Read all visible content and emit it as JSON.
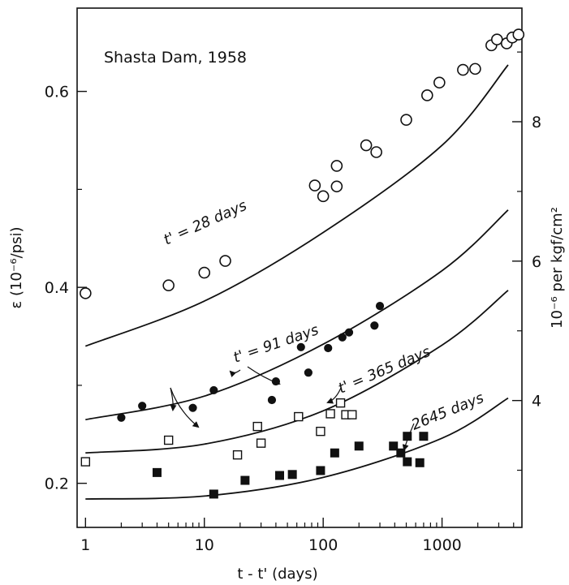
{
  "chart_data": {
    "type": "scatter",
    "title": "Shasta Dam, 1958",
    "xlabel": "t - t' (days)",
    "ylabel": "ε (10⁻⁶/psi)",
    "ylabel_right": "10⁻⁶ per kgf/cm²",
    "xscale": "log",
    "xlim": [
      0.85,
      4700
    ],
    "ylim": [
      0.155,
      0.685
    ],
    "y2lim": [
      2.18,
      9.63
    ],
    "xticks": [
      1,
      10,
      100,
      1000
    ],
    "xtick_labels": [
      "1",
      "10",
      "100",
      "1000"
    ],
    "yticks": [
      0.2,
      0.4,
      0.6
    ],
    "ytick_labels": [
      "0.2",
      "0.4",
      "0.6"
    ],
    "y2ticks": [
      4,
      6,
      8
    ],
    "y2tick_labels": [
      "4",
      "6",
      "8"
    ],
    "grid": false,
    "series": [
      {
        "name": "t' = 28 days",
        "marker": "open-circle",
        "points": [
          [
            1,
            0.394
          ],
          [
            5,
            0.402
          ],
          [
            10,
            0.415
          ],
          [
            15,
            0.427
          ],
          [
            85,
            0.504
          ],
          [
            100,
            0.493
          ],
          [
            130,
            0.503
          ],
          [
            130,
            0.524
          ],
          [
            230,
            0.545
          ],
          [
            280,
            0.538
          ],
          [
            500,
            0.571
          ],
          [
            750,
            0.596
          ],
          [
            950,
            0.609
          ],
          [
            1500,
            0.622
          ],
          [
            1900,
            0.623
          ],
          [
            2600,
            0.647
          ],
          [
            2900,
            0.653
          ],
          [
            3500,
            0.649
          ],
          [
            3900,
            0.655
          ],
          [
            4400,
            0.658
          ]
        ],
        "curve": [
          [
            1,
            0.34
          ],
          [
            10,
            0.386
          ],
          [
            100,
            0.456
          ],
          [
            1000,
            0.545
          ],
          [
            3600,
            0.627
          ]
        ]
      },
      {
        "name": "t' = 91 days",
        "marker": "filled-circle",
        "points": [
          [
            2,
            0.267
          ],
          [
            3,
            0.279
          ],
          [
            8,
            0.277
          ],
          [
            12,
            0.295
          ],
          [
            37,
            0.285
          ],
          [
            40,
            0.304
          ],
          [
            65,
            0.339
          ],
          [
            75,
            0.313
          ],
          [
            110,
            0.338
          ],
          [
            145,
            0.349
          ],
          [
            165,
            0.354
          ],
          [
            270,
            0.361
          ],
          [
            300,
            0.381
          ]
        ],
        "curve": [
          [
            1,
            0.265
          ],
          [
            10,
            0.289
          ],
          [
            100,
            0.342
          ],
          [
            1000,
            0.417
          ],
          [
            3600,
            0.479
          ]
        ]
      },
      {
        "name": "t' = 365 days",
        "marker": "open-square",
        "points": [
          [
            1,
            0.222
          ],
          [
            5,
            0.244
          ],
          [
            19,
            0.229
          ],
          [
            28,
            0.258
          ],
          [
            30,
            0.241
          ],
          [
            62,
            0.268
          ],
          [
            95,
            0.253
          ],
          [
            115,
            0.271
          ],
          [
            140,
            0.282
          ],
          [
            155,
            0.27
          ],
          [
            175,
            0.27
          ]
        ],
        "curve": [
          [
            1,
            0.231
          ],
          [
            10,
            0.24
          ],
          [
            100,
            0.274
          ],
          [
            1000,
            0.341
          ],
          [
            3600,
            0.397
          ]
        ]
      },
      {
        "name": "2645 days",
        "marker": "filled-square",
        "points": [
          [
            4,
            0.211
          ],
          [
            12,
            0.189
          ],
          [
            22,
            0.203
          ],
          [
            43,
            0.208
          ],
          [
            55,
            0.209
          ],
          [
            95,
            0.213
          ],
          [
            125,
            0.231
          ],
          [
            200,
            0.238
          ],
          [
            390,
            0.238
          ],
          [
            450,
            0.231
          ],
          [
            510,
            0.222
          ],
          [
            510,
            0.248
          ],
          [
            650,
            0.221
          ],
          [
            700,
            0.248
          ]
        ],
        "curve": [
          [
            1,
            0.184
          ],
          [
            10,
            0.187
          ],
          [
            100,
            0.206
          ],
          [
            1000,
            0.246
          ],
          [
            3600,
            0.287
          ]
        ]
      }
    ],
    "labels": [
      "t' = 28 days",
      "t' = 91 days",
      "t' = 365 days",
      "2645 days"
    ]
  }
}
